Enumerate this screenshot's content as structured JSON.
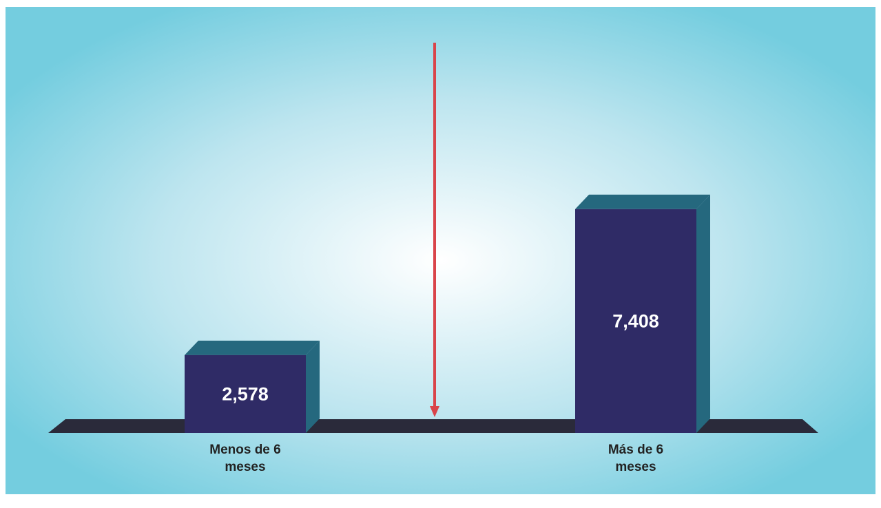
{
  "chart_data": {
    "type": "bar3d",
    "categories": [
      "Menos de 6 meses",
      "Más de 6 meses"
    ],
    "values": [
      2578,
      7408
    ],
    "value_labels": [
      "2,578",
      "7,408"
    ],
    "color": "#2f2b66"
  }
}
